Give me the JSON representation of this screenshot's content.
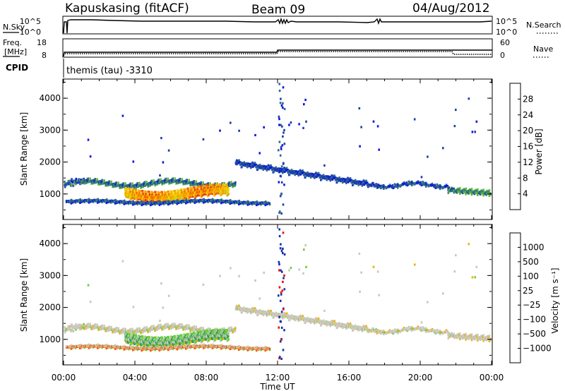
{
  "header": {
    "station": "Kapuskasing (fitACF)",
    "beam": "Beam 09",
    "date": "04/Aug/2012"
  },
  "chart_data": [
    {
      "type": "line",
      "name": "sky-search-noise",
      "left_label": "N.Sky",
      "right_label": "N.Search",
      "left_ticks": [
        "10^5",
        "10^0"
      ],
      "right_ticks": [
        "10^5",
        "10^0"
      ]
    },
    {
      "type": "line",
      "name": "frequency-nave",
      "left_label_top": "Freq.",
      "left_label_bottom": "[MHz]",
      "right_label": "Nave",
      "left_ticks": [
        "18",
        "8"
      ],
      "right_ticks": [
        "60",
        "0"
      ]
    },
    {
      "type": "table",
      "name": "cpid",
      "label": "CPID",
      "value": "themis (tau) -3310"
    },
    {
      "type": "heatmap",
      "name": "power",
      "ylabel": "Slant Range [km]",
      "ylim": [
        200,
        4600
      ],
      "yticks": [
        "1000",
        "2000",
        "3000",
        "4000"
      ],
      "xlim_hours": [
        0,
        24
      ],
      "colorbar_label": "Power [dB]",
      "colorbar_ticks": [
        "4",
        "8",
        "12",
        "16",
        "20",
        "24",
        "28"
      ],
      "colors": [
        "#0b14e8",
        "#1f3fa8",
        "#2e6a8c",
        "#3f8f6a",
        "#5fb83a",
        "#a8cf1e",
        "#f0d000",
        "#f8a000",
        "#f46000",
        "#e82010"
      ]
    },
    {
      "type": "heatmap",
      "name": "velocity",
      "ylabel": "Slant Range [km]",
      "ylim": [
        200,
        4600
      ],
      "yticks": [
        "1000",
        "2000",
        "3000",
        "4000"
      ],
      "xlim_hours": [
        0,
        24
      ],
      "xticks": [
        "00:00",
        "04:00",
        "08:00",
        "12:00",
        "16:00",
        "20:00",
        "00:00"
      ],
      "xlabel": "Time UT",
      "colorbar_label": "Velocity [m s⁻¹]",
      "colorbar_ticks": [
        "1000",
        "500",
        "100",
        "25",
        "−25",
        "−100",
        "−500",
        "−1000"
      ],
      "colors": [
        "#1a2fb0",
        "#1f63b0",
        "#2f8f60",
        "#3fb050",
        "#6ccf3a",
        "#c8c8c0",
        "#c8c8c0",
        "#f0b000",
        "#f88000",
        "#f04a00",
        "#e81010"
      ]
    }
  ]
}
